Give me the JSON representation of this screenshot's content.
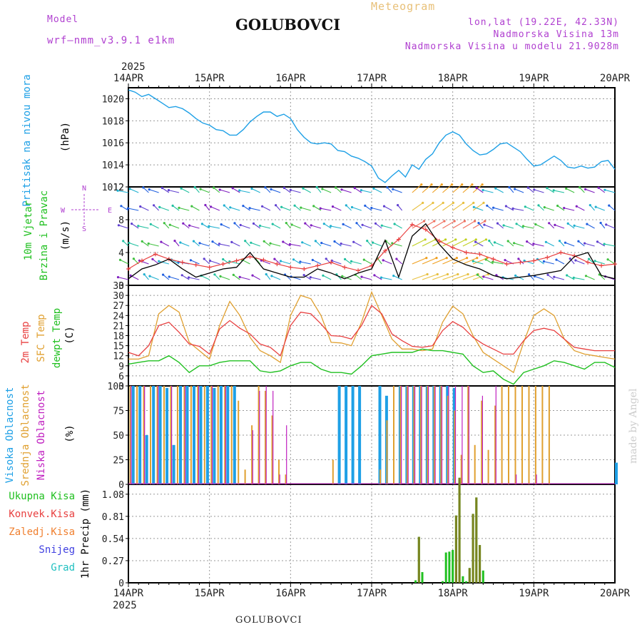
{
  "header": {
    "model_label": "Model",
    "model_name": "wrf—nmm_v3.9.1 e1km",
    "title": "GOLUBOVCI",
    "meteogram": "Meteogram",
    "lonlat": "lon,lat (19.22E, 42.33N)",
    "elevation": "Nadmorska Visina 13m",
    "model_elevation": "Nadmorska Visina u modelu 21.9028m"
  },
  "footer": {
    "station": "GOLUBOVCI",
    "credit": "made by Angel"
  },
  "time_axis": {
    "year": "2025",
    "labels": [
      "14APR",
      "15APR",
      "16APR",
      "17APR",
      "18APR",
      "19APR",
      "20APR"
    ]
  },
  "colors": {
    "pressure": "#1ea0e6",
    "temp2m": "#e84040",
    "sfc": "#e0a030",
    "dew": "#20c020",
    "high_cloud": "#1ea0e6",
    "mid_cloud": "#e0a030",
    "low_cloud": "#c020c0",
    "total_precip": "#20c020",
    "conv_precip": "#e84040",
    "frozen": "#f08030",
    "snow": "#4040e0",
    "grad": "#20c0c0"
  },
  "chart_data": [
    {
      "type": "line",
      "panel": "pressure",
      "axis_label": "(hPa)",
      "side_labels": [
        "Pritisak na nivou mora"
      ],
      "yticks": [
        1012,
        1014,
        1016,
        1018,
        1020
      ],
      "ylim": [
        1012,
        1021
      ],
      "xlim": [
        0,
        144
      ],
      "series": [
        {
          "x": [
            0,
            2,
            4,
            6,
            8,
            10,
            12,
            14,
            16,
            18,
            20,
            22,
            24,
            26,
            28,
            30,
            32,
            34,
            36,
            38,
            40,
            42,
            44,
            46,
            48,
            50,
            52,
            54,
            56,
            58,
            60,
            62,
            64,
            66,
            68,
            70,
            72,
            74,
            76,
            78,
            80,
            82,
            84,
            86,
            88,
            90,
            92,
            94,
            96,
            98,
            100,
            102,
            104,
            106,
            108,
            110,
            112,
            114,
            116,
            118,
            120,
            122,
            124,
            126,
            128,
            130,
            132,
            134,
            136,
            138,
            140,
            142,
            144
          ],
          "values": [
            1020.8,
            1020.6,
            1020.2,
            1020.4,
            1020.0,
            1019.6,
            1019.2,
            1019.3,
            1019.1,
            1018.7,
            1018.2,
            1017.8,
            1017.6,
            1017.2,
            1017.1,
            1016.7,
            1016.7,
            1017.2,
            1017.9,
            1018.4,
            1018.8,
            1018.8,
            1018.4,
            1018.6,
            1018.2,
            1017.2,
            1016.5,
            1016.0,
            1015.9,
            1016.0,
            1015.9,
            1015.3,
            1015.2,
            1014.8,
            1014.6,
            1014.3,
            1013.9,
            1012.8,
            1012.4,
            1013.0,
            1013.5,
            1012.9,
            1014.0,
            1013.6,
            1014.5,
            1015.0,
            1016.0,
            1016.7,
            1017.0,
            1016.7,
            1015.9,
            1015.3,
            1014.9,
            1015.0,
            1015.4,
            1015.9,
            1016.0,
            1015.6,
            1015.2,
            1014.5,
            1013.9,
            1014.0,
            1014.4,
            1014.8,
            1014.4,
            1013.8,
            1013.7,
            1013.9,
            1013.7,
            1013.8,
            1014.3,
            1014.4,
            1013.6
          ]
        }
      ]
    },
    {
      "type": "line",
      "panel": "wind",
      "axis_label": "(m/s)",
      "side_labels": [
        "10m Vjetar",
        "Brzina i Pravac"
      ],
      "compass": [
        "N",
        "E",
        "S",
        "W"
      ],
      "yticks": [
        0,
        4,
        8,
        12
      ],
      "ylim": [
        0,
        12
      ],
      "xlim": [
        0,
        144
      ],
      "series": [
        {
          "x": [
            0,
            4,
            8,
            12,
            16,
            20,
            24,
            28,
            32,
            36,
            40,
            44,
            48,
            52,
            56,
            60,
            64,
            68,
            72,
            76,
            80,
            84,
            88,
            92,
            96,
            100,
            104,
            108,
            112,
            116,
            120,
            124,
            128,
            132,
            136,
            140,
            144
          ],
          "values": [
            2.0,
            3.0,
            3.8,
            3.2,
            2.8,
            2.5,
            2.2,
            2.6,
            3.0,
            3.5,
            3.1,
            2.6,
            2.2,
            2.0,
            2.4,
            2.8,
            2.2,
            1.8,
            2.4,
            4.2,
            5.6,
            7.4,
            6.8,
            5.4,
            4.6,
            4.0,
            3.8,
            3.2,
            2.6,
            2.8,
            3.0,
            3.4,
            4.0,
            3.6,
            2.8,
            2.4,
            2.6
          ]
        },
        {
          "x": [
            0,
            4,
            8,
            12,
            16,
            20,
            24,
            28,
            32,
            36,
            40,
            44,
            48,
            52,
            56,
            60,
            64,
            68,
            72,
            76,
            80,
            84,
            88,
            92,
            96,
            100,
            104,
            108,
            112,
            116,
            120,
            124,
            128,
            132,
            136,
            140,
            144
          ],
          "values": [
            0.8,
            2.0,
            2.5,
            3.2,
            2.0,
            1.0,
            1.5,
            2.0,
            2.2,
            4.0,
            2.0,
            1.5,
            1.0,
            1.0,
            2.0,
            1.5,
            0.8,
            1.5,
            2.0,
            5.5,
            1.0,
            6.0,
            7.5,
            5.0,
            3.2,
            2.5,
            2.0,
            1.2,
            0.8,
            1.0,
            1.2,
            1.5,
            1.8,
            3.5,
            4.0,
            1.2,
            0.8
          ]
        }
      ]
    },
    {
      "type": "line",
      "panel": "temperature",
      "axis_label": "(C)",
      "side_labels": [
        "2m Temp",
        "SFC Temp",
        "dewpt Temp"
      ],
      "yticks": [
        3,
        6,
        9,
        12,
        15,
        18,
        21,
        24,
        27,
        30,
        33
      ],
      "ylim": [
        3,
        33
      ],
      "xlim": [
        0,
        144
      ],
      "series": [
        {
          "name": "2m Temp",
          "x": [
            0,
            3,
            6,
            9,
            12,
            15,
            18,
            21,
            24,
            27,
            30,
            33,
            36,
            39,
            42,
            45,
            48,
            51,
            54,
            57,
            60,
            63,
            66,
            69,
            72,
            75,
            78,
            81,
            84,
            87,
            90,
            93,
            96,
            99,
            102,
            105,
            108,
            111,
            114,
            117,
            120,
            123,
            126,
            129,
            132,
            135,
            138,
            141,
            144
          ],
          "values": [
            13,
            12,
            15,
            21,
            22,
            19,
            15.5,
            14.8,
            12.5,
            20,
            22.5,
            20.2,
            18.5,
            15.5,
            14.5,
            12,
            21,
            25,
            24.5,
            21.5,
            18,
            17.8,
            17,
            21,
            27,
            24.5,
            18.5,
            16.5,
            14.8,
            14.5,
            15,
            19.5,
            22.2,
            20.5,
            17.5,
            15.5,
            14,
            12.5,
            12.5,
            16.5,
            19.5,
            20.2,
            19.5,
            17,
            14.5,
            14,
            13.5,
            13.5,
            13.5
          ]
        },
        {
          "name": "SFC Temp",
          "x": [
            0,
            3,
            6,
            9,
            12,
            15,
            18,
            21,
            24,
            27,
            30,
            33,
            36,
            39,
            42,
            45,
            48,
            51,
            54,
            57,
            60,
            63,
            66,
            69,
            72,
            75,
            78,
            81,
            84,
            87,
            90,
            93,
            96,
            99,
            102,
            105,
            108,
            111,
            114,
            117,
            120,
            123,
            126,
            129,
            132,
            135,
            138,
            141,
            144
          ],
          "values": [
            11,
            11,
            12,
            24.5,
            27,
            25,
            16,
            13.5,
            11,
            21,
            28.2,
            24,
            17.5,
            13.5,
            12,
            10,
            24,
            30,
            29,
            24,
            16,
            15.8,
            15,
            22,
            31,
            24,
            17,
            14,
            14,
            13.5,
            14,
            22,
            26.8,
            24.5,
            18,
            13,
            11,
            9,
            7,
            16,
            24,
            26,
            24,
            17,
            13.5,
            12.5,
            12,
            11.5,
            11
          ]
        },
        {
          "name": "dewpt Temp",
          "x": [
            0,
            3,
            6,
            9,
            12,
            15,
            18,
            21,
            24,
            27,
            30,
            33,
            36,
            39,
            42,
            45,
            48,
            51,
            54,
            57,
            60,
            63,
            66,
            69,
            72,
            75,
            78,
            81,
            84,
            87,
            90,
            93,
            96,
            99,
            102,
            105,
            108,
            111,
            114,
            117,
            120,
            123,
            126,
            129,
            132,
            135,
            138,
            141,
            144
          ],
          "values": [
            9.5,
            10,
            10.5,
            10.5,
            12,
            10,
            7,
            9,
            9,
            10,
            10.5,
            10.5,
            10.5,
            7.5,
            7,
            7.5,
            9,
            10,
            10,
            8,
            7,
            7,
            6.5,
            9,
            12,
            12.5,
            13,
            13,
            13,
            14,
            13.5,
            13.5,
            13,
            12.5,
            9,
            7,
            7.5,
            5,
            3.5,
            7,
            8,
            9,
            10.5,
            10,
            9,
            8,
            10,
            10,
            8.5
          ]
        }
      ]
    },
    {
      "type": "bar",
      "panel": "clouds",
      "axis_label": "(%)",
      "side_labels": [
        "Visoka Oblacnost",
        "Srednja Oblacnost",
        "Niska Oblacnost"
      ],
      "yticks": [
        0,
        25,
        50,
        75,
        100
      ],
      "ylim": [
        0,
        100
      ],
      "xlim": [
        0,
        144
      ],
      "series": [
        {
          "name": "Visoka Oblacnost",
          "x": [
            1,
            3,
            5,
            7,
            9,
            11,
            13,
            15,
            17,
            19,
            21,
            23,
            25,
            27,
            29,
            31,
            46,
            60,
            62,
            64,
            66,
            68,
            74,
            76,
            78,
            80,
            82,
            84,
            86,
            88,
            90,
            92,
            94,
            96,
            144
          ],
          "values": [
            100,
            100,
            50,
            100,
            100,
            98,
            40,
            100,
            100,
            100,
            100,
            100,
            98,
            100,
            100,
            100,
            0,
            0,
            100,
            100,
            100,
            100,
            100,
            90,
            0,
            100,
            100,
            100,
            100,
            100,
            100,
            100,
            100,
            98,
            22
          ]
        },
        {
          "name": "Srednja Oblacnost",
          "x": [
            0,
            2,
            4,
            6,
            8,
            10,
            12,
            14,
            16,
            18,
            20,
            22,
            24,
            26,
            28,
            30,
            32,
            34,
            36,
            38,
            40,
            42,
            44,
            46,
            60,
            74,
            76,
            78,
            80,
            82,
            84,
            86,
            88,
            90,
            92,
            94,
            96,
            98,
            100,
            102,
            104,
            106,
            108,
            110,
            112,
            114,
            116,
            118,
            120,
            122,
            124
          ],
          "values": [
            100,
            100,
            100,
            100,
            100,
            100,
            100,
            100,
            100,
            100,
            100,
            100,
            100,
            100,
            100,
            100,
            85,
            15,
            60,
            100,
            95,
            70,
            25,
            10,
            25,
            15,
            65,
            100,
            100,
            100,
            100,
            100,
            100,
            100,
            100,
            90,
            75,
            30,
            100,
            40,
            85,
            35,
            80,
            100,
            100,
            100,
            100,
            100,
            100,
            100,
            100
          ]
        },
        {
          "name": "Niska Oblacnost",
          "x": [
            0,
            4,
            8,
            12,
            16,
            20,
            24,
            28,
            32,
            36,
            38,
            40,
            42,
            44,
            46,
            74,
            76,
            78,
            80,
            82,
            84,
            86,
            88,
            90,
            92,
            94,
            96,
            98,
            100,
            102,
            104,
            106,
            108,
            110,
            112,
            114,
            116,
            118,
            120,
            122,
            124
          ],
          "values": [
            100,
            100,
            100,
            100,
            100,
            100,
            100,
            100,
            0,
            55,
            95,
            100,
            95,
            10,
            60,
            0,
            0,
            0,
            100,
            100,
            100,
            100,
            100,
            100,
            100,
            100,
            100,
            100,
            100,
            0,
            90,
            0,
            100,
            0,
            0,
            10,
            0,
            0,
            10,
            0,
            0
          ]
        }
      ]
    },
    {
      "type": "bar",
      "panel": "precipitation",
      "axis_label": "1hr Precip (mm)",
      "side_labels": [
        "Ukupna Kisa",
        "Konvek.Kisa",
        "Zaledj.Kisa",
        "Snijeg",
        "Grad"
      ],
      "yticks": [
        0,
        0.27,
        0.54,
        0.81,
        1.08
      ],
      "ylim": [
        0,
        1.2
      ],
      "xlim": [
        0,
        144
      ],
      "series": [
        {
          "name": "Ukupna Kisa",
          "x": [
            85,
            86,
            87,
            93,
            94,
            95,
            96,
            97,
            98,
            99,
            100,
            101,
            102,
            103,
            104,
            105
          ],
          "values": [
            0.03,
            0.56,
            0.13,
            0.02,
            0.37,
            0.38,
            0.4,
            0.82,
            1.28,
            0.08,
            0.02,
            0.18,
            0.84,
            1.04,
            0.46,
            0.15
          ]
        },
        {
          "name": "Konvek.Kisa",
          "x": [
            86,
            97,
            98,
            101,
            102,
            103,
            104
          ],
          "values": [
            0.56,
            0.82,
            1.28,
            0.18,
            0.84,
            1.04,
            0.46
          ]
        },
        {
          "name": "Zaledj.Kisa",
          "x": [],
          "values": []
        },
        {
          "name": "Snijeg",
          "x": [],
          "values": []
        },
        {
          "name": "Grad",
          "x": [],
          "values": []
        }
      ]
    }
  ]
}
